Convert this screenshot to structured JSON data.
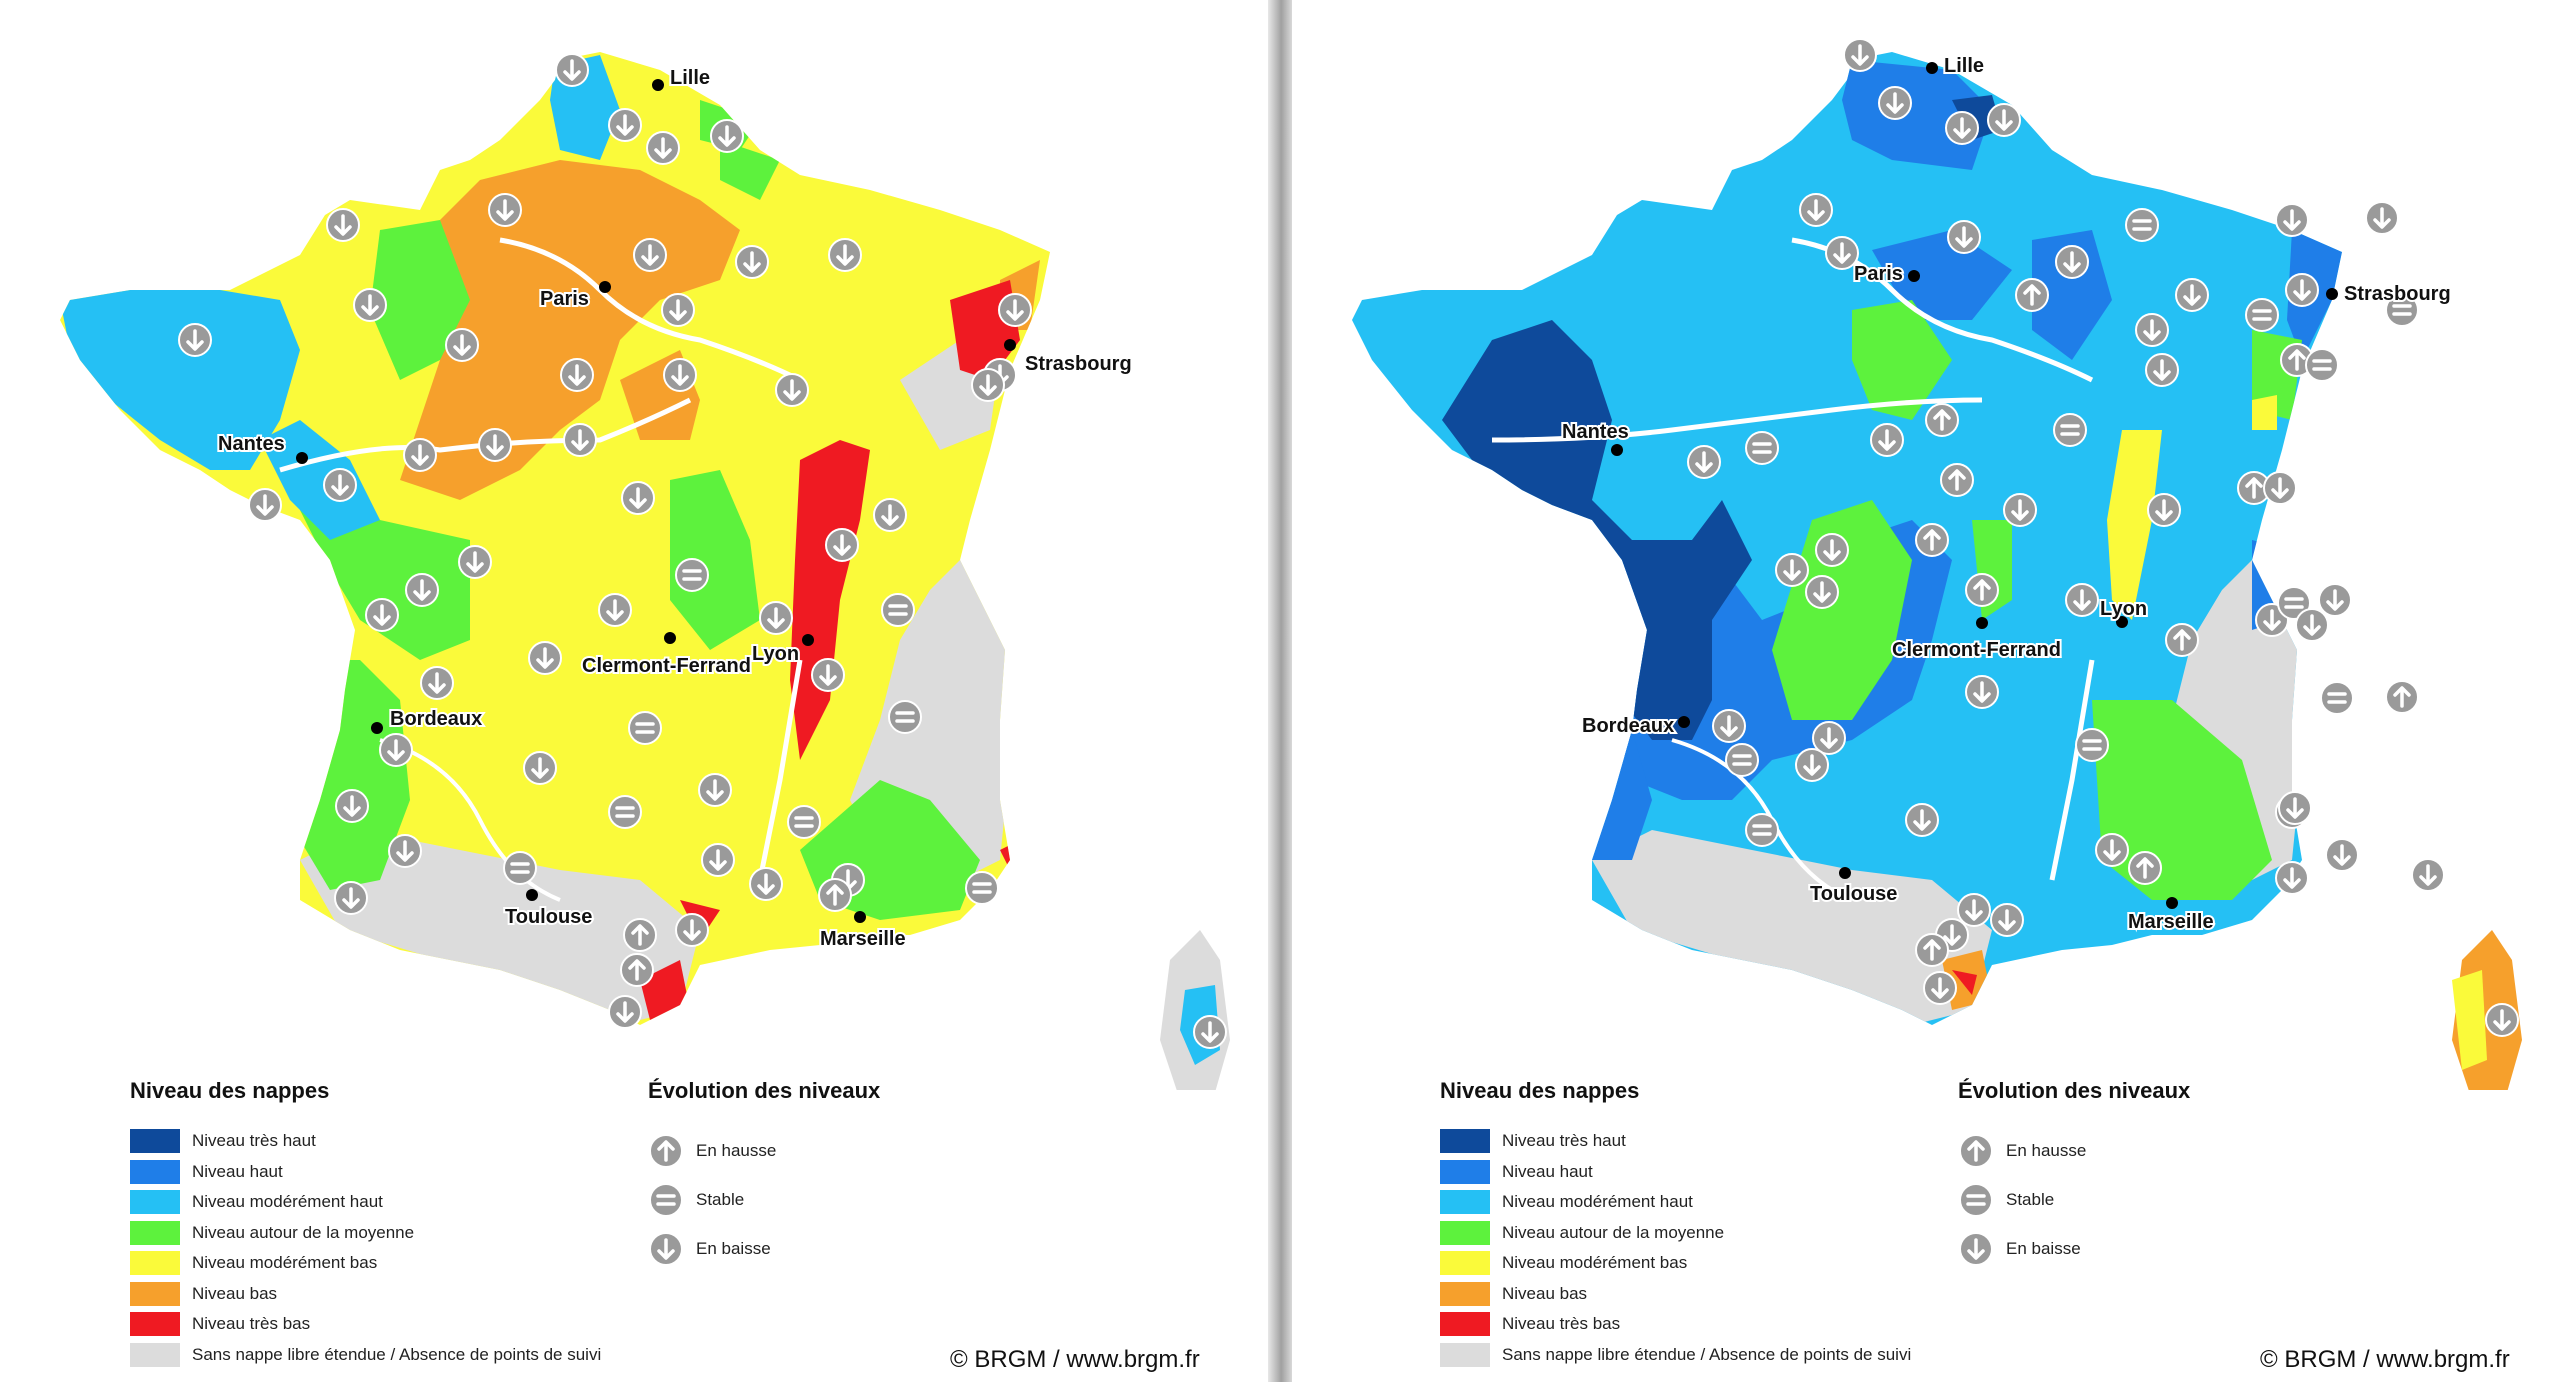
{
  "colors": {
    "tres_haut": "#0e4a9b",
    "haut": "#1f7ee8",
    "moderement_haut": "#25c0f4",
    "autour_moyenne": "#5df23d",
    "moderement_bas": "#fafa3a",
    "bas": "#f6a02c",
    "tres_bas": "#ef1a22",
    "sans_nappe": "#dcdcdc",
    "arrow_up_down": "#9a9a9a",
    "rivers": "#ffffff"
  },
  "legend": {
    "niveau_title": "Niveau des nappes",
    "evolution_title": "Évolution des niveaux",
    "levels": [
      {
        "label": "Niveau très haut",
        "color": "#0e4a9b"
      },
      {
        "label": "Niveau haut",
        "color": "#1f7ee8"
      },
      {
        "label": "Niveau modérément haut",
        "color": "#25c0f4"
      },
      {
        "label": "Niveau autour de la moyenne",
        "color": "#5df23d"
      },
      {
        "label": "Niveau modérément bas",
        "color": "#fafa3a"
      },
      {
        "label": "Niveau bas",
        "color": "#f6a02c"
      },
      {
        "label": "Niveau très bas",
        "color": "#ef1a22"
      },
      {
        "label": "Sans nappe libre étendue / Absence de points de suivi",
        "color": "#dcdcdc"
      }
    ],
    "evolution": [
      {
        "label": "En hausse",
        "icon": "arrow-up-icon"
      },
      {
        "label": "Stable",
        "icon": "equals-icon"
      },
      {
        "label": "En baisse",
        "icon": "arrow-down-icon"
      }
    ]
  },
  "credit": "© BRGM / www.brgm.fr",
  "cities": {
    "lille": "Lille",
    "paris": "Paris",
    "strasbourg": "Strasbourg",
    "nantes": "Nantes",
    "lyon": "Lyon",
    "clermont": "Clermont-Ferrand",
    "bordeaux": "Bordeaux",
    "toulouse": "Toulouse",
    "marseille": "Marseille"
  },
  "maps": [
    {
      "name": "left-map",
      "dominant_level": "Niveau modérément bas"
    },
    {
      "name": "right-map",
      "dominant_level": "Niveau modérément haut"
    }
  ]
}
